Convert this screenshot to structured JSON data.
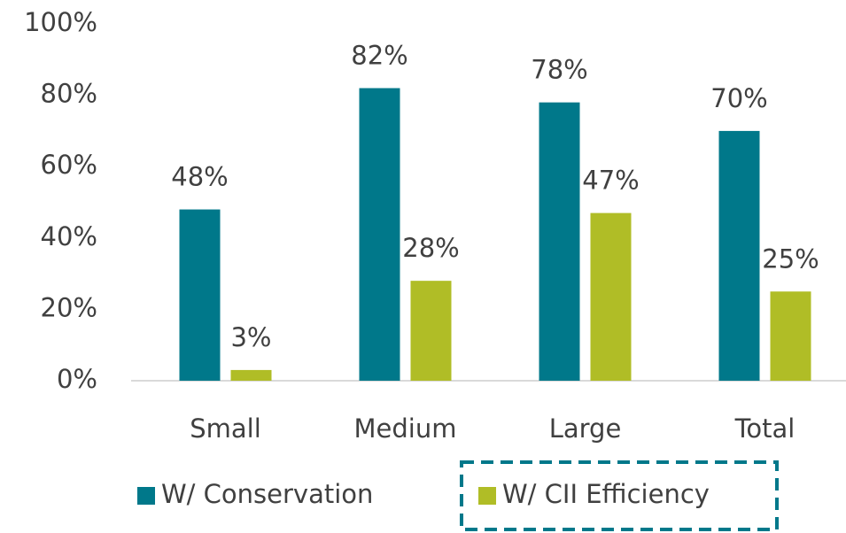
{
  "chart_data": {
    "type": "bar",
    "categories": [
      "Small",
      "Medium",
      "Large",
      "Total"
    ],
    "series": [
      {
        "name": "W/ Conservation",
        "color": "#00788a",
        "values": [
          48,
          82,
          78,
          70
        ],
        "value_labels": [
          "48%",
          "82%",
          "78%",
          "70%"
        ]
      },
      {
        "name": "W/ CII Efficiency",
        "color": "#b0bd26",
        "values": [
          3,
          28,
          47,
          25
        ],
        "value_labels": [
          "3%",
          "28%",
          "47%",
          "25%"
        ]
      }
    ],
    "ylim": [
      0,
      100
    ],
    "yticks": [
      {
        "value": 0,
        "label": "0%"
      },
      {
        "value": 20,
        "label": "20%"
      },
      {
        "value": 40,
        "label": "40%"
      },
      {
        "value": 60,
        "label": "60%"
      },
      {
        "value": 80,
        "label": "80%"
      },
      {
        "value": 100,
        "label": "100%"
      }
    ],
    "grid": false,
    "legend": "bottom"
  }
}
